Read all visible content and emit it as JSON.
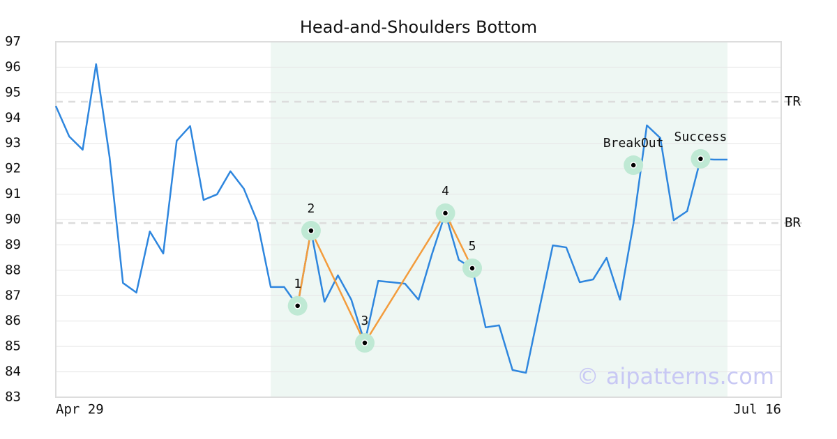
{
  "chart_data": {
    "type": "line",
    "title": "Head-and-Shoulders Bottom",
    "categories": [
      "Apr 29",
      null,
      null,
      null,
      null,
      null,
      null,
      null,
      null,
      null,
      null,
      null,
      null,
      null,
      null,
      null,
      null,
      null,
      null,
      null,
      null,
      null,
      null,
      null,
      null,
      null,
      null,
      null,
      null,
      null,
      null,
      null,
      null,
      null,
      null,
      null,
      null,
      null,
      null,
      null,
      null,
      null,
      null,
      null,
      null,
      null,
      null,
      null,
      null,
      null,
      null,
      null,
      null,
      null,
      "Jul 16"
    ],
    "values": [
      94.47,
      93.27,
      92.75,
      96.12,
      92.47,
      87.5,
      87.12,
      89.53,
      88.66,
      93.1,
      93.68,
      90.77,
      90.99,
      91.9,
      91.21,
      89.92,
      87.34,
      87.34,
      86.6,
      89.56,
      86.76,
      87.8,
      86.84,
      85.14,
      87.58,
      87.53,
      87.47,
      86.84,
      88.63,
      90.25,
      88.41,
      88.08,
      85.75,
      85.83,
      84.07,
      83.96,
      86.49,
      88.98,
      88.9,
      87.53,
      87.64,
      88.49,
      86.84,
      89.84,
      93.71,
      93.21,
      89.97,
      90.33,
      92.39,
      92.36,
      92.36,
      null,
      null,
      null,
      null
    ],
    "color": "#2e86de",
    "pattern_color": "#f39c3c",
    "pattern_points": [
      {
        "label": "1",
        "x": 18,
        "value": 86.6
      },
      {
        "label": "2",
        "x": 19,
        "value": 89.56
      },
      {
        "label": "3",
        "x": 23,
        "value": 85.14
      },
      {
        "label": "4",
        "x": 29,
        "value": 90.25
      },
      {
        "label": "5",
        "x": 31,
        "value": 88.08
      }
    ],
    "signals": [
      {
        "label": "BreakOut",
        "x": 43,
        "value": 92.14
      },
      {
        "label": "Success",
        "x": 48,
        "value": 92.39
      }
    ],
    "levels": [
      {
        "label": "TR",
        "value": 94.64
      },
      {
        "label": "BR",
        "value": 89.86
      }
    ],
    "shade": [
      16,
      50
    ],
    "watermark": "© aipatterns.com",
    "ylim": [
      83,
      97
    ],
    "yticks": [
      83,
      84,
      85,
      86,
      87,
      88,
      89,
      90,
      91,
      92,
      93,
      94,
      95,
      96,
      97
    ],
    "grid": true
  }
}
